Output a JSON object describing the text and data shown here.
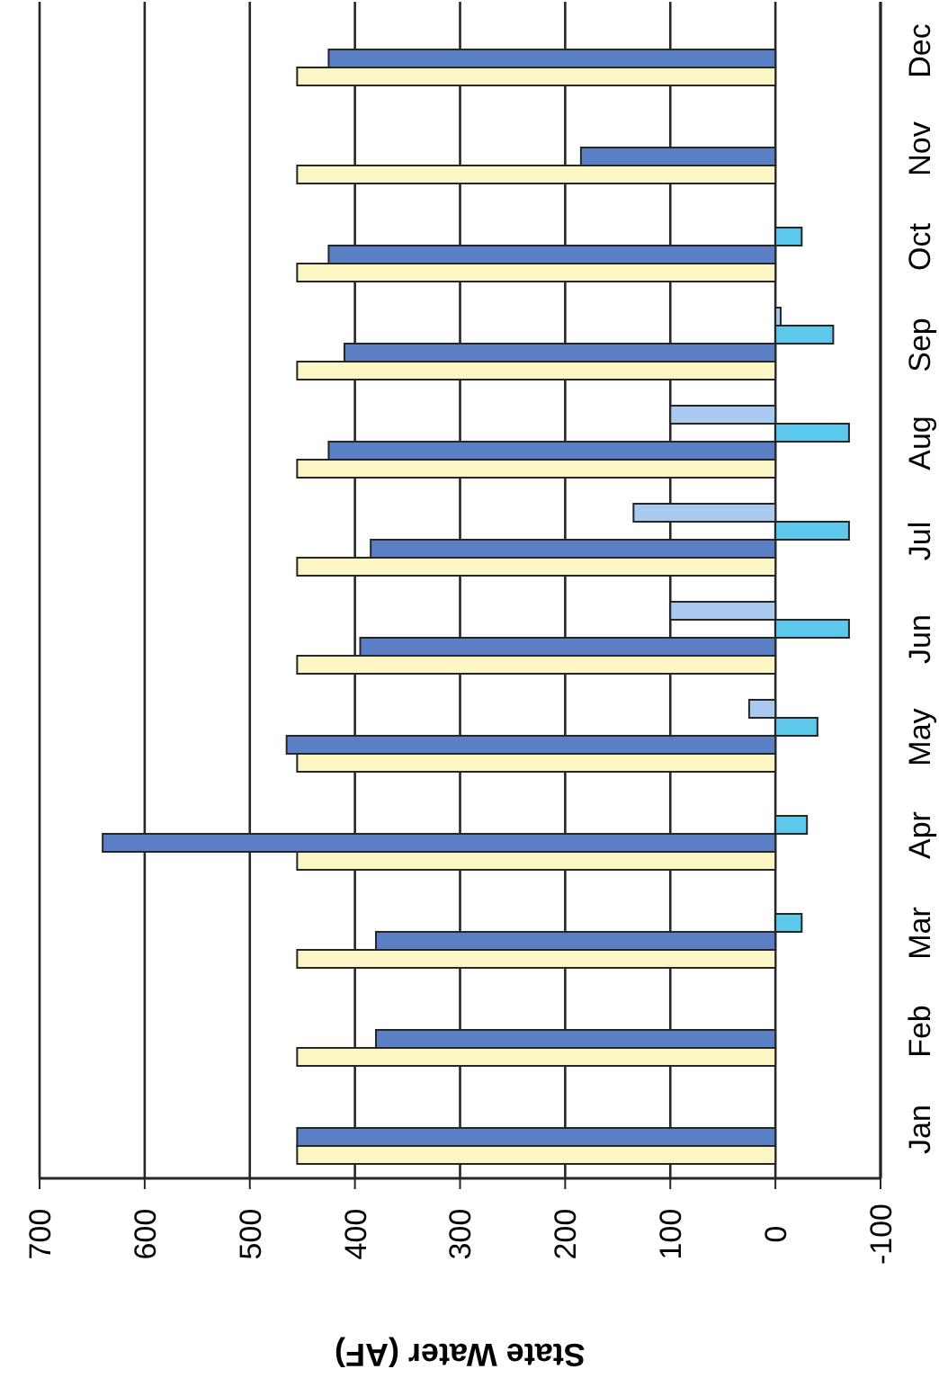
{
  "chart_data": {
    "type": "bar",
    "orientation": "horizontal",
    "xlabel": "State Water (AF)",
    "categories": [
      "Dec",
      "Nov",
      "Oct",
      "Sep",
      "Aug",
      "Jul",
      "Jun",
      "May",
      "Apr",
      "Mar",
      "Feb",
      "Jan"
    ],
    "series": [
      {
        "color": "#a9c9ee",
        "values": [
          0,
          0,
          0,
          -5,
          100,
          135,
          100,
          25,
          0,
          0,
          0,
          0
        ]
      },
      {
        "color": "#5cc8ec",
        "values": [
          0,
          0,
          -25,
          -55,
          -70,
          -70,
          -70,
          -40,
          -30,
          -25,
          0,
          0
        ]
      },
      {
        "color": "#5b7fc4",
        "values": [
          425,
          185,
          425,
          410,
          425,
          385,
          395,
          465,
          640,
          380,
          380,
          455
        ]
      },
      {
        "color": "#fbf6c4",
        "values": [
          455,
          455,
          455,
          455,
          455,
          455,
          455,
          455,
          455,
          455,
          455,
          455
        ]
      }
    ],
    "xlim": [
      700,
      -100
    ],
    "xticks": [
      700,
      600,
      500,
      400,
      300,
      200,
      100,
      0,
      -100
    ],
    "grid": "x"
  }
}
